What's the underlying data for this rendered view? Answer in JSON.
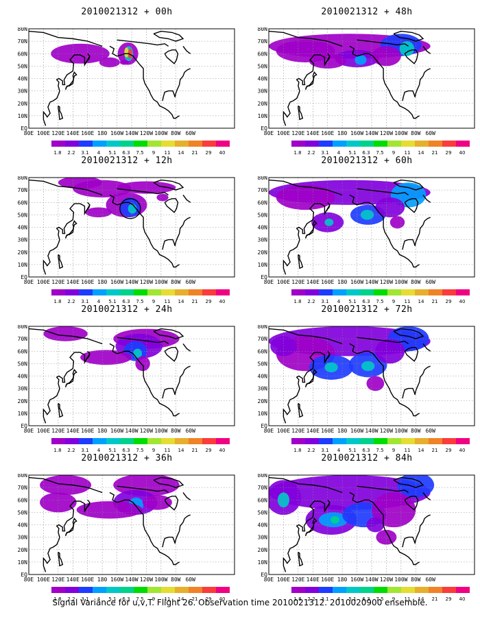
{
  "panels": [
    {
      "title": "2010021312 + 00h",
      "lead": 0
    },
    {
      "title": "2010021312 + 48h",
      "lead": 48
    },
    {
      "title": "2010021312 + 12h",
      "lead": 12
    },
    {
      "title": "2010021312 + 60h",
      "lead": 60
    },
    {
      "title": "2010021312 + 24h",
      "lead": 24
    },
    {
      "title": "2010021312 + 72h",
      "lead": 72
    },
    {
      "title": "2010021312 + 36h",
      "lead": 36
    },
    {
      "title": "2010021312 + 84h",
      "lead": 84
    }
  ],
  "lat_labels": [
    "80N",
    "70N",
    "60N",
    "50N",
    "40N",
    "30N",
    "20N",
    "10N",
    "EQ"
  ],
  "lon_labels": [
    "80E",
    "100E",
    "120E",
    "140E",
    "160E",
    "180",
    "160W",
    "140W",
    "120W",
    "100W",
    "80W",
    "60W"
  ],
  "colorbar": {
    "labels": [
      "1.8",
      "2.2",
      "3.1",
      "4",
      "5.1",
      "6.3",
      "7.5",
      "9",
      "11",
      "14",
      "21",
      "29",
      "40"
    ],
    "colors": [
      "#a000c8",
      "#8200dc",
      "#1e3cff",
      "#00a0ff",
      "#00c8c8",
      "#00d28c",
      "#00dc00",
      "#a0e632",
      "#e6dc32",
      "#e6af2d",
      "#f08228",
      "#fa3c3c",
      "#f00082"
    ]
  },
  "footer": "Signal Variance for u,v,T. Flight 26. Observation time 2010021312. 2010020900 ensemble."
}
